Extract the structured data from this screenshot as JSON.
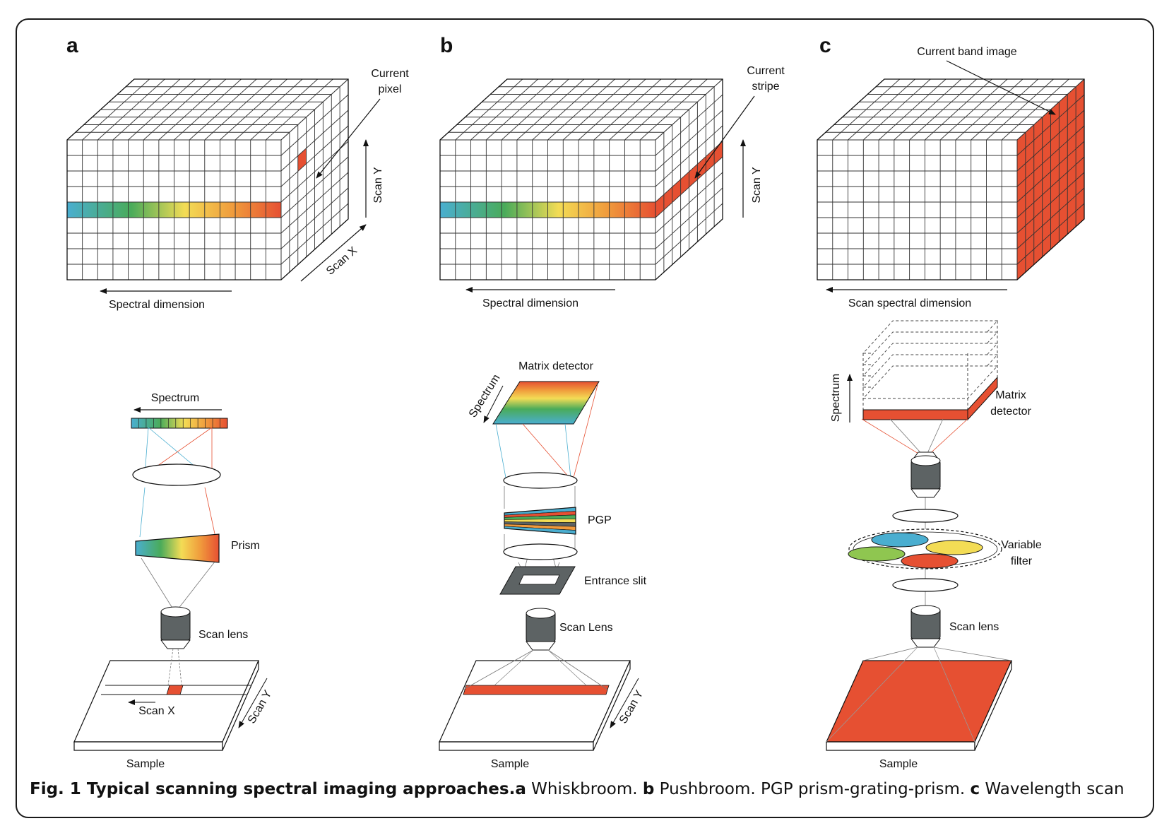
{
  "panels": {
    "a": {
      "letter": "a",
      "current_label": [
        "Current",
        "pixel"
      ],
      "scan_y": "Scan Y",
      "scan_x": "Scan X",
      "spectral_dimension": "Spectral dimension",
      "spectrum": "Spectrum",
      "prism": "Prism",
      "scan_lens": "Scan lens",
      "sample_scan_x": "Scan X",
      "sample_scan_y": "Scan Y",
      "sample": "Sample"
    },
    "b": {
      "letter": "b",
      "current_label": [
        "Current",
        "stripe"
      ],
      "scan_y": "Scan Y",
      "spectral_dimension": "Spectral dimension",
      "matrix_detector": "Matrix detector",
      "spectrum": "Spectrum",
      "pgp": "PGP",
      "entrance_slit": "Entrance slit",
      "scan_lens": "Scan Lens",
      "sample_scan_y": "Scan Y",
      "sample": "Sample"
    },
    "c": {
      "letter": "c",
      "current_band_image": "Current band image",
      "scan_spectral_dimension": "Scan spectral dimension",
      "spectrum": "Spectrum",
      "matrix_detector": [
        "Matrix",
        "detector"
      ],
      "variable_filter": [
        "Variable",
        "filter"
      ],
      "scan_lens": "Scan lens",
      "sample": "Sample"
    }
  },
  "caption": {
    "title": "Fig. 1 Typical scanning spectral imaging approaches.",
    "a_letter": "a",
    "a_text": " Whiskbroom. ",
    "b_letter": "b",
    "b_text": " Pushbroom. PGP prism-grating-prism. ",
    "c_letter": "c",
    "c_text": " Wavelength scan"
  },
  "colors": {
    "red": "#e65032",
    "blue": "#4aaed0",
    "green": "#4aab5a",
    "yellow": "#f3dc55",
    "orange": "#f09a3c",
    "dark_gray": "#5d6364",
    "grid": "#333333"
  }
}
